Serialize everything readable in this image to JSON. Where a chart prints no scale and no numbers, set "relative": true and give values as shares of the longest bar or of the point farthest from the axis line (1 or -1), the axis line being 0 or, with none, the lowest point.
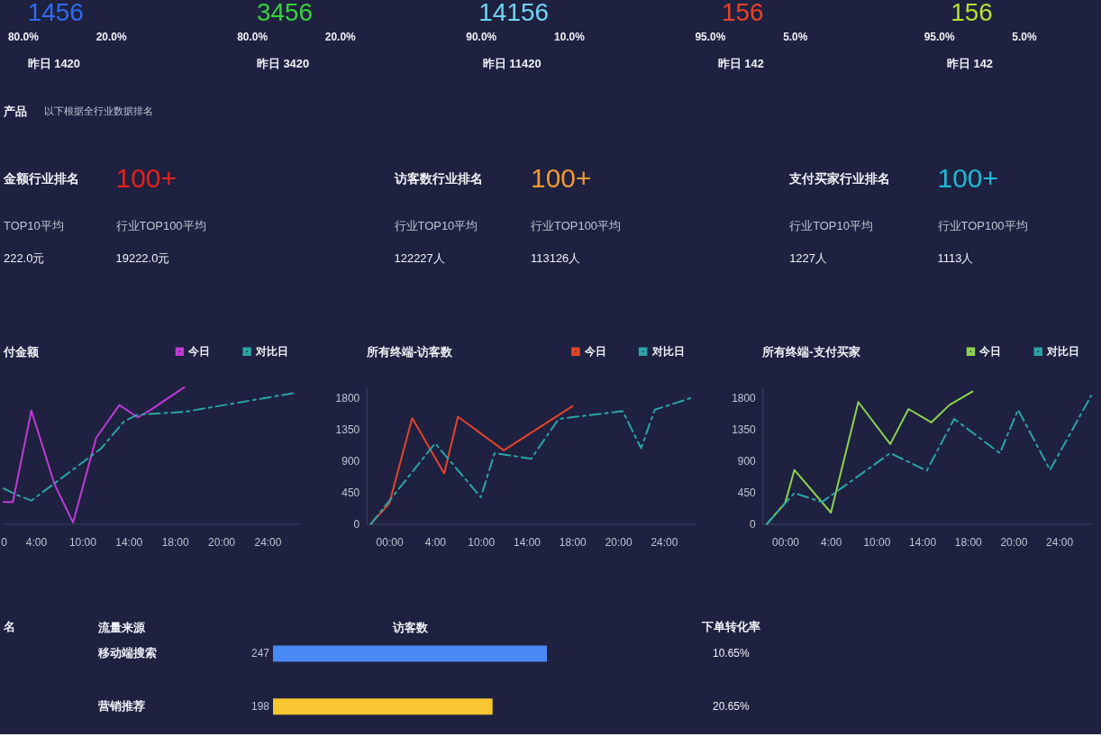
{
  "chart_data": [
    {
      "type": "other",
      "annotations": [
        "1456",
        "80.0%",
        "20.0%",
        "昨日 1420"
      ],
      "color": "#2f6df2"
    },
    {
      "type": "other",
      "annotations": [
        "3456",
        "80.0%",
        "20.0%",
        "昨日 3420"
      ],
      "color": "#36d43a"
    },
    {
      "type": "other",
      "annotations": [
        "14156",
        "90.0%",
        "10.0%",
        "昨日 11420"
      ],
      "color": "#72d6f6"
    },
    {
      "type": "other",
      "annotations": [
        "156",
        "95.0%",
        "5.0%",
        "昨日 142"
      ],
      "color": "#ea4328"
    },
    {
      "type": "other",
      "annotations": [
        "156",
        "95.0%",
        "5.0%",
        "昨日 142"
      ],
      "color": "#b6e22e"
    },
    {
      "type": "other",
      "title": "产品",
      "subtitle": "以下根据全行业数据排名",
      "annotations": [
        "金额行业排名",
        "100+",
        "TOP10平均",
        "行业TOP100平均",
        "222.0元",
        "19222.0元"
      ],
      "color": "#e8201c"
    },
    {
      "type": "other",
      "annotations": [
        "访客数行业排名",
        "100+",
        "行业TOP10平均",
        "行业TOP100平均",
        "122227人",
        "113126人"
      ],
      "color": "#f29a2e"
    },
    {
      "type": "other",
      "annotations": [
        "支付买家行业排名",
        "100+",
        "行业TOP10平均",
        "行业TOP100平均",
        "1227人",
        "1113人"
      ],
      "color": "#20b8d8"
    },
    {
      "type": "line",
      "title": "付金额",
      "relative": true,
      "legend": "top right",
      "categories": [
        "0",
        null,
        null,
        null,
        null,
        null,
        null,
        "4:00",
        null,
        null,
        null,
        null,
        null,
        null,
        null,
        null,
        null,
        "10:00",
        null,
        null,
        null,
        null,
        null,
        null,
        null,
        null,
        null,
        "14:00",
        null,
        null,
        null,
        null,
        null,
        null,
        null,
        null,
        null,
        "18:00",
        null,
        null,
        null,
        null,
        null,
        null,
        null,
        null,
        null,
        "20:00",
        null,
        null,
        null,
        null,
        null,
        null,
        null,
        null,
        null,
        "24:00",
        null,
        null,
        null,
        null,
        null,
        null,
        null
      ],
      "series": [
        {
          "name": "今日",
          "color": "#c03ad6",
          "line_style": "solid",
          "values": [
            0.16,
            null,
            0.16,
            null,
            null,
            null,
            0.83,
            null,
            null,
            null,
            null,
            0.29,
            null,
            null,
            null,
            0.01,
            null,
            null,
            null,
            null,
            0.63,
            null,
            null,
            null,
            null,
            0.87,
            null,
            null,
            null,
            0.78,
            null,
            null,
            0.84,
            null,
            null,
            null,
            null,
            null,
            null,
            1.0,
            null,
            null,
            null,
            null,
            null,
            null,
            null,
            null,
            null,
            null,
            null,
            null,
            null,
            null,
            null,
            null,
            null,
            null,
            null,
            null,
            null,
            null,
            null,
            null,
            null
          ]
        },
        {
          "name": "对比日",
          "color": "#2ba5a6",
          "line_style": "dashed",
          "values": [
            0.26,
            null,
            null,
            0.21,
            null,
            null,
            0.17,
            null,
            null,
            null,
            null,
            null,
            null,
            null,
            null,
            null,
            null,
            null,
            null,
            null,
            null,
            0.55,
            null,
            null,
            null,
            null,
            0.75,
            null,
            null,
            0.8,
            null,
            null,
            null,
            null,
            null,
            null,
            null,
            null,
            null,
            0.82,
            null,
            null,
            null,
            null,
            null,
            null,
            null,
            null,
            null,
            null,
            null,
            null,
            null,
            null,
            null,
            null,
            null,
            null,
            null,
            null,
            null,
            null,
            null,
            0.96,
            null
          ]
        }
      ]
    },
    {
      "type": "line",
      "title": "所有终端-访客数",
      "legend": "top right",
      "categories": [
        null,
        null,
        null,
        null,
        null,
        "00:00",
        null,
        null,
        null,
        null,
        null,
        null,
        null,
        null,
        null,
        "4:00",
        null,
        null,
        null,
        null,
        null,
        null,
        null,
        null,
        null,
        "10:00",
        null,
        null,
        null,
        null,
        null,
        null,
        null,
        null,
        null,
        "14:00",
        null,
        null,
        null,
        null,
        null,
        null,
        null,
        null,
        null,
        "18:00",
        null,
        null,
        null,
        null,
        null,
        null,
        null,
        null,
        null,
        "20:00",
        null,
        null,
        null,
        null,
        null,
        null,
        null,
        null,
        null,
        "24:00",
        null,
        null,
        null,
        null,
        null,
        null,
        null
      ],
      "ylim": [
        0,
        1950
      ],
      "yticks": [
        0,
        450,
        900,
        1350,
        1800
      ],
      "series": [
        {
          "name": "今日",
          "color": "#e4442a",
          "line_style": "solid",
          "values": [
            null,
            0,
            null,
            null,
            null,
            290,
            null,
            null,
            null,
            null,
            1510,
            null,
            null,
            null,
            null,
            null,
            null,
            720,
            null,
            null,
            1530,
            null,
            null,
            null,
            null,
            null,
            null,
            null,
            null,
            null,
            1050,
            null,
            null,
            null,
            null,
            null,
            null,
            null,
            null,
            null,
            null,
            null,
            null,
            null,
            null,
            1680,
            null,
            null,
            null,
            null,
            null,
            null,
            null,
            null,
            null,
            null,
            null,
            null,
            null,
            null,
            null,
            null,
            null,
            null,
            null,
            null,
            null,
            null,
            null,
            null,
            null,
            null,
            null
          ]
        },
        {
          "name": "对比日",
          "color": "#2ba5a6",
          "line_style": "dashed",
          "values": [
            null,
            0,
            null,
            null,
            null,
            null,
            null,
            null,
            null,
            null,
            null,
            null,
            null,
            null,
            null,
            1150,
            null,
            null,
            null,
            null,
            null,
            null,
            null,
            null,
            null,
            380,
            null,
            null,
            1010,
            null,
            null,
            null,
            null,
            null,
            null,
            null,
            930,
            null,
            null,
            null,
            null,
            null,
            1500,
            null,
            null,
            null,
            null,
            null,
            null,
            null,
            null,
            null,
            null,
            null,
            null,
            null,
            1610,
            null,
            null,
            null,
            1080,
            null,
            null,
            1630,
            null,
            null,
            null,
            null,
            null,
            null,
            null,
            1800,
            null
          ]
        }
      ]
    },
    {
      "type": "line",
      "title": "所有终端-支付买家",
      "legend": "top right",
      "categories": [
        null,
        null,
        null,
        null,
        null,
        "00:00",
        null,
        null,
        null,
        null,
        null,
        null,
        null,
        null,
        null,
        "4:00",
        null,
        null,
        null,
        null,
        null,
        null,
        null,
        null,
        null,
        "10:00",
        null,
        null,
        null,
        null,
        null,
        null,
        null,
        null,
        null,
        "14:00",
        null,
        null,
        null,
        null,
        null,
        null,
        null,
        null,
        null,
        "18:00",
        null,
        null,
        null,
        null,
        null,
        null,
        null,
        null,
        null,
        "20:00",
        null,
        null,
        null,
        null,
        null,
        null,
        null,
        null,
        null,
        "24:00",
        null,
        null,
        null,
        null,
        null,
        null,
        null
      ],
      "ylim": [
        0,
        1950
      ],
      "yticks": [
        0,
        450,
        900,
        1350,
        1800
      ],
      "series": [
        {
          "name": "今日",
          "color": "#8ed24e",
          "line_style": "solid",
          "values": [
            null,
            0,
            null,
            null,
            null,
            300,
            null,
            770,
            null,
            null,
            null,
            null,
            null,
            null,
            null,
            160,
            null,
            null,
            null,
            null,
            null,
            1740,
            null,
            null,
            null,
            null,
            null,
            null,
            1140,
            null,
            null,
            null,
            1640,
            null,
            null,
            null,
            null,
            1450,
            null,
            null,
            null,
            1700,
            null,
            null,
            null,
            null,
            1890,
            null,
            null,
            null,
            null,
            null,
            null,
            null,
            null,
            null,
            null,
            null,
            null,
            null,
            null,
            null,
            null,
            null,
            null,
            null,
            null,
            null,
            null,
            null,
            null,
            null,
            null
          ]
        },
        {
          "name": "对比日",
          "color": "#2ba5a6",
          "line_style": "dashed",
          "values": [
            null,
            0,
            null,
            null,
            null,
            null,
            null,
            440,
            null,
            null,
            null,
            null,
            null,
            310,
            null,
            null,
            null,
            null,
            null,
            null,
            null,
            null,
            null,
            null,
            null,
            null,
            null,
            null,
            1010,
            null,
            null,
            null,
            null,
            null,
            null,
            null,
            760,
            null,
            null,
            null,
            null,
            null,
            1500,
            null,
            null,
            null,
            null,
            null,
            null,
            null,
            null,
            null,
            1010,
            null,
            null,
            null,
            1630,
            null,
            null,
            null,
            null,
            null,
            null,
            770,
            null,
            null,
            null,
            null,
            null,
            null,
            null,
            null,
            1830
          ]
        }
      ]
    },
    {
      "type": "bar",
      "orientation": "horizontal",
      "categories": [
        "移动端搜索",
        "营销推荐"
      ],
      "values": [
        247,
        198
      ],
      "colors": [
        "#4a8af4",
        "#f8c630"
      ],
      "data_labels": true,
      "ylabel": "流量来源",
      "xlabel": "访客数",
      "annotations": [
        "名",
        "下单转化率",
        "10.65%",
        "20.65%"
      ]
    }
  ]
}
